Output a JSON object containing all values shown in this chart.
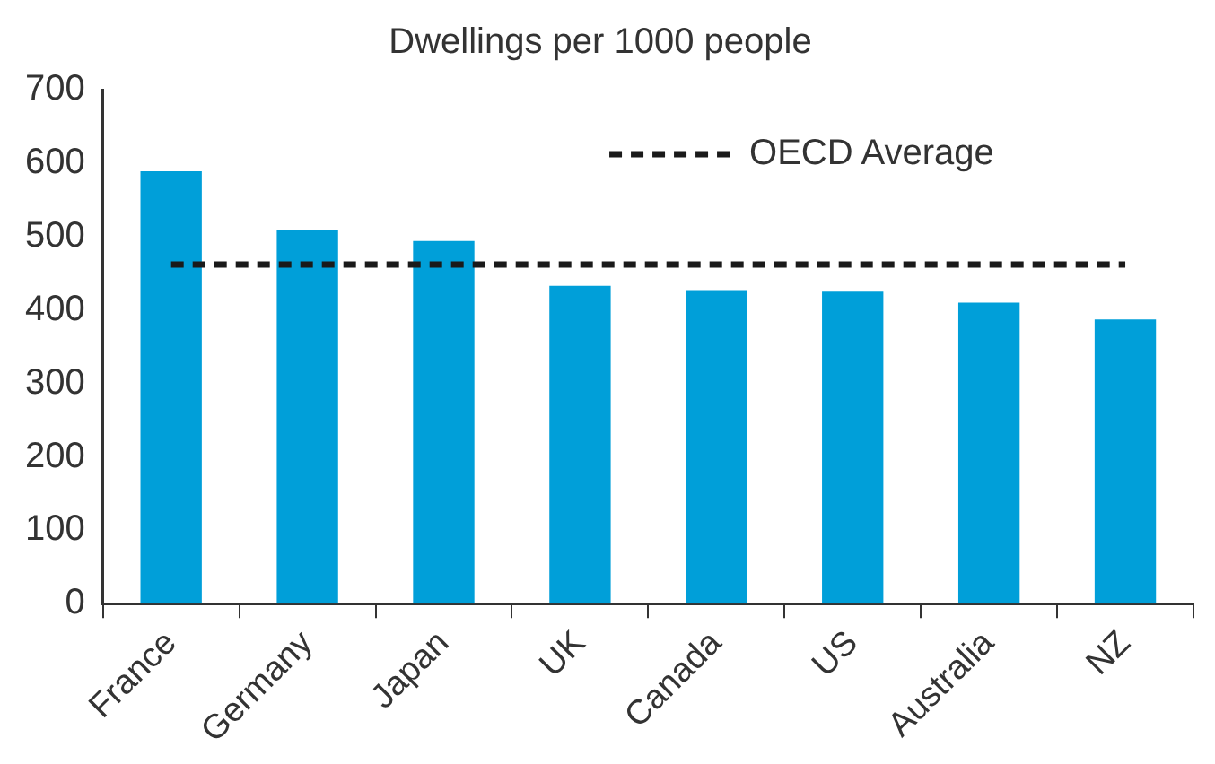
{
  "chart_data": {
    "type": "bar",
    "title": "Dwellings per 1000 people",
    "categories": [
      "France",
      "Germany",
      "Japan",
      "UK",
      "Canada",
      "US",
      "Australia",
      "NZ"
    ],
    "series": [
      {
        "color": "#009fd9",
        "values": [
          589,
          509,
          494,
          433,
          427,
          425,
          410,
          387
        ]
      },
      {
        "type": "line",
        "name": "OECD Average",
        "color": "#1a1a1a",
        "line_style": "dashed",
        "marker": "none",
        "values": [
          462,
          462,
          462,
          462,
          462,
          462,
          462,
          462
        ]
      }
    ],
    "ylim": [
      0,
      700
    ],
    "yticks": [
      0,
      100,
      200,
      300,
      400,
      500,
      600,
      700
    ],
    "grid": false,
    "legend": "top right"
  }
}
